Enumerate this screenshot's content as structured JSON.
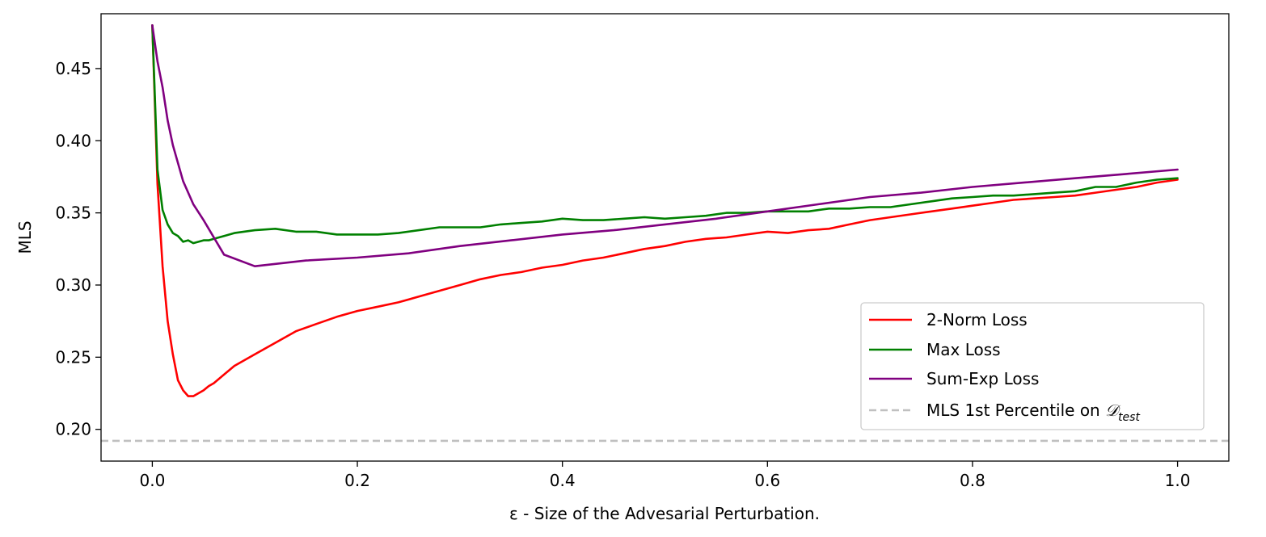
{
  "chart_data": {
    "type": "line",
    "title": "",
    "xlabel": "ε - Size of the Advesarial Perturbation.",
    "ylabel": "MLS",
    "xlim": [
      -0.05,
      1.05
    ],
    "ylim": [
      0.178,
      0.488
    ],
    "xticks": [
      0.0,
      0.2,
      0.4,
      0.6,
      0.8,
      1.0
    ],
    "xtick_labels": [
      "0.0",
      "0.2",
      "0.4",
      "0.6",
      "0.8",
      "1.0"
    ],
    "yticks": [
      0.2,
      0.25,
      0.3,
      0.35,
      0.4,
      0.45
    ],
    "ytick_labels": [
      "0.20",
      "0.25",
      "0.30",
      "0.35",
      "0.40",
      "0.45"
    ],
    "grid": false,
    "legend_position": "lower-right",
    "series": [
      {
        "name": "2-Norm Loss",
        "color": "#ff0000",
        "style": "solid",
        "x": [
          0.0,
          0.005,
          0.01,
          0.015,
          0.02,
          0.025,
          0.03,
          0.035,
          0.04,
          0.045,
          0.05,
          0.055,
          0.06,
          0.07,
          0.08,
          0.1,
          0.12,
          0.14,
          0.16,
          0.18,
          0.2,
          0.22,
          0.24,
          0.26,
          0.28,
          0.3,
          0.32,
          0.34,
          0.36,
          0.38,
          0.4,
          0.42,
          0.44,
          0.46,
          0.48,
          0.5,
          0.52,
          0.54,
          0.56,
          0.58,
          0.6,
          0.62,
          0.64,
          0.66,
          0.68,
          0.7,
          0.72,
          0.74,
          0.76,
          0.78,
          0.8,
          0.82,
          0.84,
          0.86,
          0.88,
          0.9,
          0.92,
          0.94,
          0.96,
          0.98,
          1.0
        ],
        "values": [
          0.48,
          0.37,
          0.313,
          0.275,
          0.252,
          0.234,
          0.227,
          0.223,
          0.223,
          0.225,
          0.227,
          0.23,
          0.232,
          0.238,
          0.244,
          0.252,
          0.26,
          0.268,
          0.273,
          0.278,
          0.282,
          0.285,
          0.288,
          0.292,
          0.296,
          0.3,
          0.304,
          0.307,
          0.309,
          0.312,
          0.314,
          0.317,
          0.319,
          0.322,
          0.325,
          0.327,
          0.33,
          0.332,
          0.333,
          0.335,
          0.337,
          0.336,
          0.338,
          0.339,
          0.342,
          0.345,
          0.347,
          0.349,
          0.351,
          0.353,
          0.355,
          0.357,
          0.359,
          0.36,
          0.361,
          0.362,
          0.364,
          0.366,
          0.368,
          0.371,
          0.373
        ]
      },
      {
        "name": "Max Loss",
        "color": "#008000",
        "style": "solid",
        "x": [
          0.0,
          0.005,
          0.01,
          0.015,
          0.02,
          0.025,
          0.03,
          0.035,
          0.04,
          0.045,
          0.05,
          0.055,
          0.06,
          0.07,
          0.08,
          0.1,
          0.12,
          0.14,
          0.16,
          0.18,
          0.2,
          0.22,
          0.24,
          0.26,
          0.28,
          0.3,
          0.32,
          0.34,
          0.36,
          0.38,
          0.4,
          0.42,
          0.44,
          0.46,
          0.48,
          0.5,
          0.52,
          0.54,
          0.56,
          0.58,
          0.6,
          0.62,
          0.64,
          0.66,
          0.68,
          0.7,
          0.72,
          0.74,
          0.76,
          0.78,
          0.8,
          0.82,
          0.84,
          0.86,
          0.88,
          0.9,
          0.92,
          0.94,
          0.96,
          0.98,
          1.0
        ],
        "values": [
          0.48,
          0.38,
          0.352,
          0.342,
          0.336,
          0.334,
          0.33,
          0.331,
          0.329,
          0.33,
          0.331,
          0.331,
          0.332,
          0.334,
          0.336,
          0.338,
          0.339,
          0.337,
          0.337,
          0.335,
          0.335,
          0.335,
          0.336,
          0.338,
          0.34,
          0.34,
          0.34,
          0.342,
          0.343,
          0.344,
          0.346,
          0.345,
          0.345,
          0.346,
          0.347,
          0.346,
          0.347,
          0.348,
          0.35,
          0.35,
          0.351,
          0.351,
          0.351,
          0.353,
          0.353,
          0.354,
          0.354,
          0.356,
          0.358,
          0.36,
          0.361,
          0.362,
          0.362,
          0.363,
          0.364,
          0.365,
          0.368,
          0.368,
          0.371,
          0.373,
          0.374
        ]
      },
      {
        "name": "Sum-Exp Loss",
        "color": "#800080",
        "style": "solid",
        "x": [
          0.0,
          0.005,
          0.01,
          0.015,
          0.02,
          0.03,
          0.04,
          0.05,
          0.07,
          0.1,
          0.15,
          0.2,
          0.25,
          0.3,
          0.35,
          0.4,
          0.45,
          0.5,
          0.55,
          0.6,
          0.65,
          0.7,
          0.75,
          0.8,
          0.85,
          0.9,
          0.95,
          1.0
        ],
        "values": [
          0.48,
          0.455,
          0.437,
          0.414,
          0.397,
          0.372,
          0.356,
          0.345,
          0.321,
          0.313,
          0.317,
          0.319,
          0.322,
          0.327,
          0.331,
          0.335,
          0.338,
          0.342,
          0.346,
          0.351,
          0.356,
          0.361,
          0.364,
          0.368,
          0.371,
          0.374,
          0.377,
          0.38
        ]
      },
      {
        "name": "MLS 1st Percentile on 𝒟test",
        "color": "#c0c0c0",
        "style": "dashed",
        "hline": 0.192
      }
    ]
  },
  "legend": {
    "items": [
      {
        "label": "2-Norm Loss",
        "color": "#ff0000"
      },
      {
        "label": "Max Loss",
        "color": "#008000"
      },
      {
        "label": "Sum-Exp Loss",
        "color": "#800080"
      },
      {
        "label": "MLS 1st Percentile on ",
        "math": "𝒟",
        "sub": "test",
        "color": "#c0c0c0"
      }
    ]
  }
}
